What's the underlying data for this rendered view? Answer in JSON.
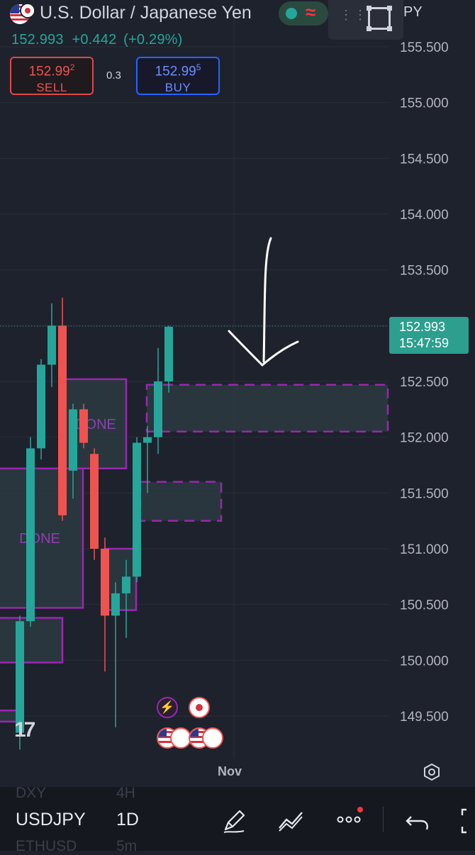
{
  "header": {
    "title": "U.S. Dollar / Japanese Yen",
    "price": "152.993",
    "change": "+0.442",
    "change_pct": "(+0.29%)",
    "symbol_fragment": "PY"
  },
  "trade": {
    "sell_price_main": "152.99",
    "sell_price_sup": "2",
    "sell_label": "SELL",
    "spread": "0.3",
    "buy_price_main": "152.99",
    "buy_price_sup": "5",
    "buy_label": "BUY"
  },
  "price_axis": {
    "labels": [
      "155.500",
      "155.000",
      "154.500",
      "154.000",
      "153.500",
      "153.000",
      "152.500",
      "152.000",
      "151.500",
      "151.000",
      "150.500",
      "150.000",
      "149.500"
    ],
    "current_price": "152.993",
    "countdown": "15:47:59"
  },
  "chart_data": {
    "type": "candlestick",
    "symbol": "USDJPY",
    "interval": "1D",
    "ylim": [
      149.2,
      155.7
    ],
    "x_label": "Nov",
    "candles": [
      {
        "o": 149.35,
        "h": 150.4,
        "l": 149.2,
        "c": 150.35
      },
      {
        "o": 150.35,
        "h": 152.0,
        "l": 150.3,
        "c": 151.9
      },
      {
        "o": 151.9,
        "h": 152.7,
        "l": 151.8,
        "c": 152.65
      },
      {
        "o": 152.65,
        "h": 153.2,
        "l": 152.45,
        "c": 153.0
      },
      {
        "o": 153.0,
        "h": 153.25,
        "l": 151.25,
        "c": 151.3
      },
      {
        "o": 151.7,
        "h": 152.3,
        "l": 151.45,
        "c": 152.25
      },
      {
        "o": 152.25,
        "h": 152.3,
        "l": 151.9,
        "c": 151.95
      },
      {
        "o": 151.85,
        "h": 151.9,
        "l": 150.9,
        "c": 151.0
      },
      {
        "o": 151.0,
        "h": 151.1,
        "l": 149.9,
        "c": 150.4
      },
      {
        "o": 150.4,
        "h": 150.7,
        "l": 149.4,
        "c": 150.6
      },
      {
        "o": 150.6,
        "h": 150.9,
        "l": 150.2,
        "c": 150.75
      },
      {
        "o": 150.75,
        "h": 152.0,
        "l": 150.7,
        "c": 151.95
      },
      {
        "o": 151.95,
        "h": 152.1,
        "l": 151.5,
        "c": 152.0
      },
      {
        "o": 152.0,
        "h": 152.8,
        "l": 151.85,
        "c": 152.5
      },
      {
        "o": 152.5,
        "h": 153.0,
        "l": 152.4,
        "c": 152.99
      }
    ],
    "zones": [
      {
        "label": "DONE",
        "top": 152.52,
        "bottom": 151.72
      },
      {
        "label": "DONE",
        "top": 151.72,
        "bottom": 150.47
      },
      {
        "label": "",
        "top": 151.0,
        "bottom": 150.45
      },
      {
        "label": "",
        "top": 150.38,
        "bottom": 149.98
      },
      {
        "label": "",
        "top": 149.55,
        "bottom": 149.45
      },
      {
        "label": "",
        "top": 152.47,
        "bottom": 152.05
      },
      {
        "label": "",
        "top": 151.6,
        "bottom": 151.25
      }
    ],
    "colors": {
      "up": "#26a69a",
      "down": "#ef5350",
      "zone_border": "#9c27b0",
      "zone_fill": "#2c3a42"
    }
  },
  "logo": "17",
  "bottom_bar": {
    "symbol": "USDJPY",
    "timeframe": "1D",
    "ghost_symbol_top": "DXY",
    "ghost_tf_top": "4H",
    "ghost_symbol_bottom": "ETHUSD",
    "ghost_tf_bottom": "5m"
  },
  "colors": {
    "background": "#1e222d",
    "accent_green": "#26a69a",
    "accent_red": "#ef5350",
    "buy_blue": "#2962ff"
  }
}
